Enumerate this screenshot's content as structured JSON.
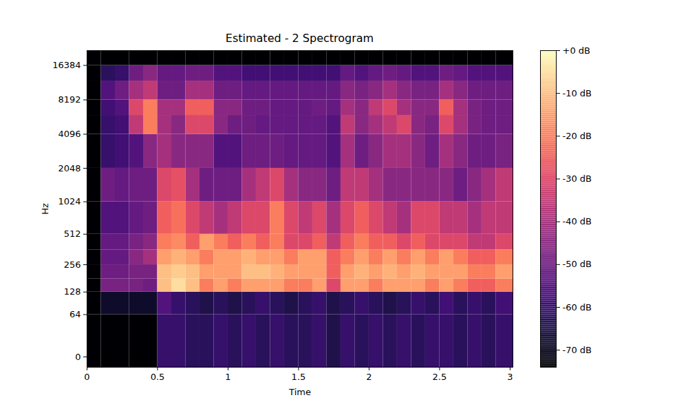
{
  "chart_data": {
    "type": "heatmap",
    "title": "Estimated -  2 Spectrogram",
    "x_label": "Time",
    "y_label": "Hz",
    "xlim": [
      0,
      3.02
    ],
    "xticks": [
      0,
      0.5,
      1,
      1.5,
      2,
      2.5,
      3
    ],
    "ylim": [
      -11,
      22050
    ],
    "yticks": [
      0,
      64,
      128,
      256,
      512,
      1024,
      2048,
      4096,
      8192,
      16384
    ],
    "log": "y",
    "color": "magma",
    "time_edges": [
      0,
      0.1,
      0.2,
      0.3,
      0.4,
      0.5,
      0.6,
      0.7,
      0.8,
      0.9,
      1.0,
      1.1,
      1.2,
      1.3,
      1.4,
      1.5,
      1.6,
      1.7,
      1.8,
      1.9,
      2.0,
      2.1,
      2.2,
      2.3,
      2.4,
      2.5,
      2.6,
      2.7,
      2.8,
      2.9,
      3.02
    ],
    "frequency_edges": [
      -11,
      64,
      128,
      181,
      256,
      362,
      512,
      1024,
      2048,
      4096,
      6000,
      8192,
      12000,
      16384,
      22050
    ],
    "values": [
      [
        -74,
        -74,
        -74,
        -74,
        -74,
        -60,
        -60,
        -62,
        -62,
        -60,
        -62,
        -60,
        -62,
        -60,
        -62,
        -62,
        -60,
        -64,
        -60,
        -62,
        -60,
        -62,
        -60,
        -62,
        -60,
        -60,
        -62,
        -60,
        -62,
        -60
      ],
      [
        -74,
        -68,
        -68,
        -68,
        -68,
        -55,
        -60,
        -62,
        -64,
        -62,
        -64,
        -62,
        -60,
        -62,
        -64,
        -62,
        -60,
        -64,
        -62,
        -60,
        -62,
        -64,
        -62,
        -60,
        -62,
        -58,
        -62,
        -60,
        -62,
        -58
      ],
      [
        -74,
        -48,
        -48,
        -48,
        -50,
        -10,
        -5,
        -10,
        -20,
        -15,
        -20,
        -15,
        -15,
        -15,
        -20,
        -20,
        -15,
        -30,
        -15,
        -15,
        -20,
        -15,
        -15,
        -15,
        -20,
        -15,
        -20,
        -25,
        -25,
        -20
      ],
      [
        -74,
        -50,
        -50,
        -48,
        -48,
        -10,
        -8,
        -10,
        -15,
        -15,
        -15,
        -10,
        -10,
        -12,
        -15,
        -15,
        -15,
        -25,
        -15,
        -12,
        -15,
        -12,
        -15,
        -12,
        -15,
        -15,
        -15,
        -20,
        -20,
        -15
      ],
      [
        -74,
        -52,
        -52,
        -45,
        -40,
        -15,
        -12,
        -15,
        -20,
        -15,
        -15,
        -12,
        -15,
        -15,
        -20,
        -15,
        -15,
        -25,
        -20,
        -15,
        -20,
        -15,
        -20,
        -15,
        -20,
        -15,
        -20,
        -25,
        -25,
        -20
      ],
      [
        -74,
        -52,
        -52,
        -48,
        -45,
        -20,
        -18,
        -25,
        -15,
        -20,
        -25,
        -20,
        -25,
        -20,
        -30,
        -30,
        -25,
        -35,
        -25,
        -20,
        -25,
        -25,
        -30,
        -25,
        -30,
        -30,
        -30,
        -35,
        -35,
        -30
      ],
      [
        -74,
        -55,
        -55,
        -52,
        -50,
        -25,
        -22,
        -30,
        -35,
        -40,
        -35,
        -30,
        -30,
        -20,
        -30,
        -35,
        -30,
        -40,
        -30,
        -25,
        -30,
        -35,
        -40,
        -30,
        -30,
        -35,
        -35,
        -40,
        -35,
        -35
      ],
      [
        -74,
        -50,
        -52,
        -50,
        -50,
        -30,
        -28,
        -40,
        -50,
        -50,
        -50,
        -40,
        -35,
        -30,
        -40,
        -45,
        -45,
        -50,
        -35,
        -35,
        -40,
        -45,
        -45,
        -45,
        -45,
        -45,
        -50,
        -45,
        -40,
        -35
      ],
      [
        -74,
        -60,
        -58,
        -55,
        -45,
        -40,
        -45,
        -45,
        -45,
        -55,
        -55,
        -50,
        -50,
        -50,
        -52,
        -52,
        -52,
        -55,
        -40,
        -50,
        -45,
        -40,
        -40,
        -45,
        -50,
        -40,
        -45,
        -50,
        -50,
        -48
      ],
      [
        -74,
        -60,
        -58,
        -35,
        -20,
        -40,
        -45,
        -30,
        -30,
        -45,
        -50,
        -50,
        -52,
        -52,
        -52,
        -52,
        -52,
        -55,
        -35,
        -45,
        -40,
        -35,
        -30,
        -45,
        -48,
        -30,
        -40,
        -48,
        -50,
        -50
      ],
      [
        -74,
        -58,
        -55,
        -30,
        -20,
        -40,
        -40,
        -25,
        -25,
        -45,
        -45,
        -50,
        -50,
        -52,
        -52,
        -52,
        -50,
        -52,
        -40,
        -45,
        -35,
        -30,
        -40,
        -45,
        -45,
        -25,
        -40,
        -48,
        -50,
        -50
      ],
      [
        -74,
        -55,
        -50,
        -40,
        -35,
        -50,
        -50,
        -40,
        -40,
        -50,
        -50,
        -52,
        -52,
        -52,
        -52,
        -52,
        -52,
        -52,
        -45,
        -48,
        -45,
        -40,
        -45,
        -48,
        -48,
        -40,
        -45,
        -50,
        -50,
        -50
      ],
      [
        -74,
        -62,
        -60,
        -50,
        -45,
        -52,
        -52,
        -50,
        -50,
        -55,
        -55,
        -58,
        -58,
        -58,
        -58,
        -58,
        -58,
        -58,
        -52,
        -55,
        -52,
        -50,
        -52,
        -55,
        -55,
        -50,
        -52,
        -55,
        -55,
        -55
      ],
      [
        -74,
        -74,
        -74,
        -74,
        -74,
        -74,
        -74,
        -74,
        -74,
        -74,
        -74,
        -74,
        -74,
        -74,
        -74,
        -74,
        -74,
        -74,
        -74,
        -74,
        -74,
        -74,
        -74,
        -74,
        -74,
        -74,
        -74,
        -74,
        -74,
        -74
      ]
    ],
    "colorbar": {
      "range": [
        -74,
        0
      ],
      "ticks": [
        {
          "value": 0,
          "label": "+0 dB"
        },
        {
          "value": -10,
          "label": "-10 dB"
        },
        {
          "value": -20,
          "label": "-20 dB"
        },
        {
          "value": -30,
          "label": "-30 dB"
        },
        {
          "value": -40,
          "label": "-40 dB"
        },
        {
          "value": -50,
          "label": "-50 dB"
        },
        {
          "value": -60,
          "label": "-60 dB"
        },
        {
          "value": -70,
          "label": "-70 dB"
        }
      ]
    }
  }
}
